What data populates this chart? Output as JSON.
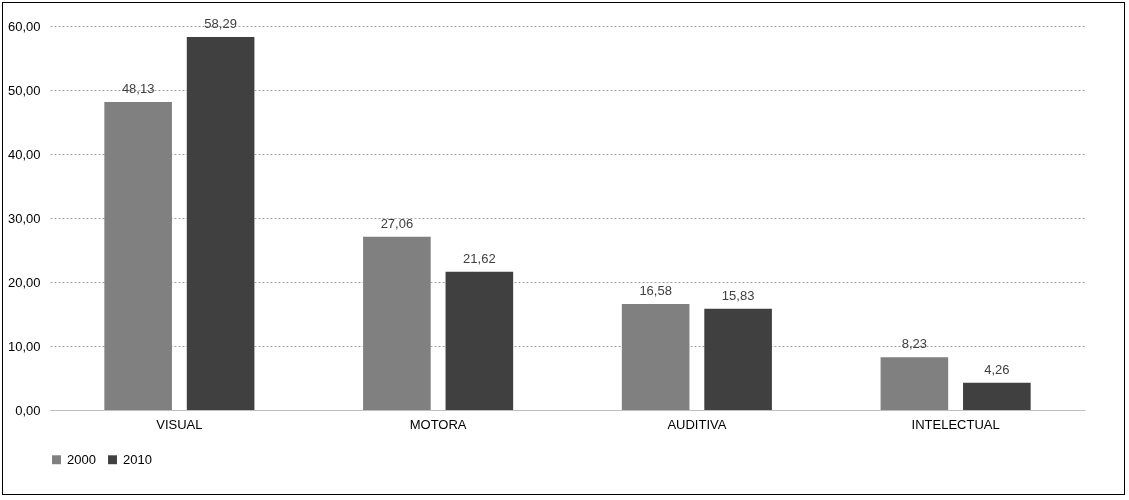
{
  "chart_data": {
    "type": "bar",
    "categories": [
      "VISUAL",
      "MOTORA",
      "AUDITIVA",
      "INTELECTUAL"
    ],
    "series": [
      {
        "name": "2000",
        "color": "#808080",
        "values": [
          48.13,
          27.06,
          16.58,
          8.23
        ],
        "value_labels": [
          "48,13",
          "27,06",
          "16,58",
          "8,23"
        ]
      },
      {
        "name": "2010",
        "color": "#404040",
        "values": [
          58.29,
          21.62,
          15.83,
          4.26
        ],
        "value_labels": [
          "58,29",
          "21,62",
          "15,83",
          "4,26"
        ]
      }
    ],
    "ylim": [
      0,
      60
    ],
    "yticks": [
      {
        "value": 0,
        "label": "0,00"
      },
      {
        "value": 10,
        "label": "10,00"
      },
      {
        "value": 20,
        "label": "20,00"
      },
      {
        "value": 30,
        "label": "30,00"
      },
      {
        "value": 40,
        "label": "40,00"
      },
      {
        "value": 50,
        "label": "50,00"
      },
      {
        "value": 60,
        "label": "60,00"
      }
    ],
    "grid": "y",
    "legend": "bottom"
  }
}
